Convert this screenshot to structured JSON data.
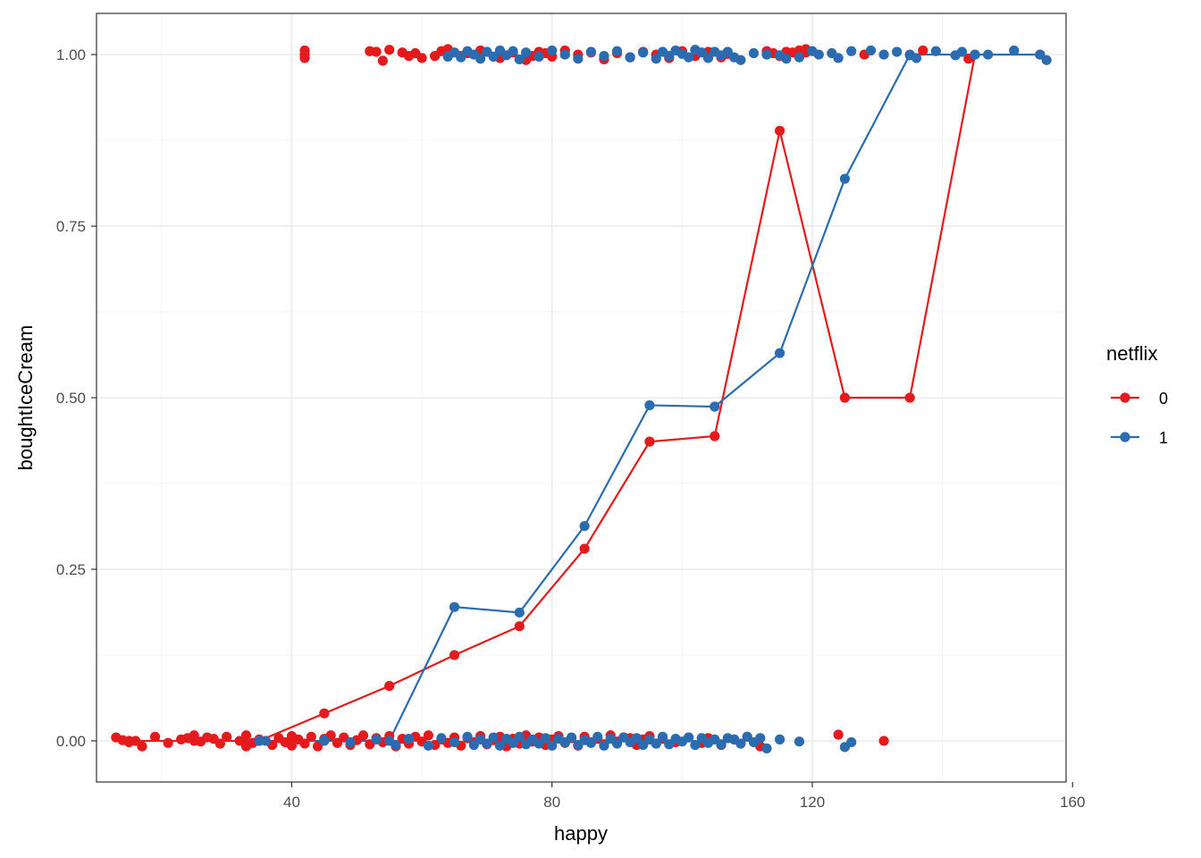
{
  "chart_data": {
    "type": "scatter",
    "title": "",
    "xlabel": "happy",
    "ylabel": "boughtIceCream",
    "xlim": [
      10,
      159
    ],
    "ylim": [
      -0.06,
      1.06
    ],
    "x_ticks": [
      40,
      80,
      120,
      160
    ],
    "x_tick_labels": [
      "40",
      "80",
      "120",
      "160"
    ],
    "y_ticks": [
      0,
      0.25,
      0.5,
      0.75,
      1
    ],
    "y_tick_labels": [
      "0.00",
      "0.25",
      "0.50",
      "0.75",
      "1.00"
    ],
    "grid": true,
    "theme": "bw",
    "legend": {
      "title": "netflix",
      "position": "right"
    },
    "colors": {
      "0": "#e41a1c",
      "1": "#2b6cb0",
      "grid_major": "#ebebeb",
      "grid_minor": "#f5f5f5",
      "panel_border": "#333333"
    },
    "series": [
      {
        "name": "0",
        "color": "#e41a1c",
        "line": {
          "x": [
            15,
            25,
            35,
            45,
            55,
            65,
            75,
            85,
            95,
            105,
            115,
            125,
            135,
            145,
            155
          ],
          "y": [
            0,
            0,
            0,
            0.04,
            0.08,
            0.125,
            0.167,
            0.28,
            0.436,
            0.444,
            0.889,
            0.5,
            0.5,
            1.0,
            1.0
          ]
        },
        "points": [
          [
            13,
            0.005
          ],
          [
            14,
            0.001
          ],
          [
            15,
            -0.002
          ],
          [
            16,
            0.0
          ],
          [
            17,
            -0.008
          ],
          [
            19,
            0.006
          ],
          [
            21,
            -0.003
          ],
          [
            23,
            0.002
          ],
          [
            24,
            0.004
          ],
          [
            25,
            0.008
          ],
          [
            26,
            -0.001
          ],
          [
            27,
            0.005
          ],
          [
            28,
            0.003
          ],
          [
            29,
            -0.004
          ],
          [
            30,
            0.006
          ],
          [
            32,
            0.0
          ],
          [
            33,
            0.008
          ],
          [
            33,
            -0.008
          ],
          [
            34,
            -0.003
          ],
          [
            35,
            0.002
          ],
          [
            37,
            -0.006
          ],
          [
            38,
            0.004
          ],
          [
            39,
            -0.002
          ],
          [
            40,
            0.007
          ],
          [
            40,
            -0.007
          ],
          [
            41,
            0.002
          ],
          [
            42,
            -0.004
          ],
          [
            43,
            0.006
          ],
          [
            44,
            -0.008
          ],
          [
            45,
            0.003
          ],
          [
            46,
            0.008
          ],
          [
            47,
            -0.003
          ],
          [
            48,
            0.005
          ],
          [
            49,
            -0.006
          ],
          [
            50,
            0.001
          ],
          [
            51,
            0.008
          ],
          [
            52,
            -0.005
          ],
          [
            53,
            0.004
          ],
          [
            54,
            -0.002
          ],
          [
            55,
            0.007
          ],
          [
            56,
            -0.008
          ],
          [
            57,
            0.003
          ],
          [
            58,
            -0.004
          ],
          [
            59,
            0.006
          ],
          [
            60,
            -0.001
          ],
          [
            61,
            0.008
          ],
          [
            62,
            -0.006
          ],
          [
            63,
            0.002
          ],
          [
            64,
            -0.003
          ],
          [
            65,
            0.005
          ],
          [
            66,
            -0.007
          ],
          [
            67,
            0.004
          ],
          [
            68,
            -0.002
          ],
          [
            69,
            0.007
          ],
          [
            70,
            -0.005
          ],
          [
            71,
            0.001
          ],
          [
            72,
            0.006
          ],
          [
            73,
            -0.008
          ],
          [
            74,
            0.003
          ],
          [
            75,
            -0.004
          ],
          [
            76,
            0.008
          ],
          [
            77,
            -0.001
          ],
          [
            78,
            0.005
          ],
          [
            79,
            -0.006
          ],
          [
            80,
            0.002
          ],
          [
            81,
            0.007
          ],
          [
            82,
            -0.003
          ],
          [
            83,
            0.004
          ],
          [
            84,
            -0.007
          ],
          [
            85,
            0.006
          ],
          [
            86,
            -0.002
          ],
          [
            87,
            0.003
          ],
          [
            88,
            -0.005
          ],
          [
            89,
            0.008
          ],
          [
            90,
            -0.001
          ],
          [
            91,
            0.005
          ],
          [
            92,
            0.004
          ],
          [
            93,
            -0.006
          ],
          [
            94,
            0.002
          ],
          [
            95,
            0.007
          ],
          [
            96,
            -0.004
          ],
          [
            97,
            0.003
          ],
          [
            99,
            -0.002
          ],
          [
            101,
            0.005
          ],
          [
            103,
            -0.003
          ],
          [
            104,
            0.004
          ],
          [
            106,
            -0.006
          ],
          [
            108,
            0.002
          ],
          [
            110,
            0.006
          ],
          [
            112,
            -0.008
          ],
          [
            124,
            0.009
          ],
          [
            131,
            0.0
          ],
          [
            42,
            1.006
          ],
          [
            42,
            1.0
          ],
          [
            42,
            0.995
          ],
          [
            52,
            1.005
          ],
          [
            53,
            1.004
          ],
          [
            54,
            0.991
          ],
          [
            55,
            1.007
          ],
          [
            57,
            1.003
          ],
          [
            58,
            0.998
          ],
          [
            59,
            1.002
          ],
          [
            60,
            0.995
          ],
          [
            62,
            0.998
          ],
          [
            63,
            1.005
          ],
          [
            64,
            1.008
          ],
          [
            66,
            0.998
          ],
          [
            67,
            1.002
          ],
          [
            69,
            1.006
          ],
          [
            72,
            0.995
          ],
          [
            74,
            1.003
          ],
          [
            76,
            0.992
          ],
          [
            77,
            0.998
          ],
          [
            78,
            1.004
          ],
          [
            79,
            1.002
          ],
          [
            80,
            0.997
          ],
          [
            82,
            1.006
          ],
          [
            84,
            1.0
          ],
          [
            86,
            1.003
          ],
          [
            88,
            0.993
          ],
          [
            90,
            1.002
          ],
          [
            92,
            0.996
          ],
          [
            94,
            1.004
          ],
          [
            96,
            1.0
          ],
          [
            98,
            0.995
          ],
          [
            100,
            1.005
          ],
          [
            102,
            0.998
          ],
          [
            104,
            1.004
          ],
          [
            106,
            0.996
          ],
          [
            107,
            1.001
          ],
          [
            113,
            1.005
          ],
          [
            114,
            1.002
          ],
          [
            115,
            0.998
          ],
          [
            116,
            1.004
          ],
          [
            117,
            1.003
          ],
          [
            118,
            1.006
          ],
          [
            119,
            1.008
          ],
          [
            119,
            1.003
          ],
          [
            128,
            1.0
          ],
          [
            137,
            1.006
          ],
          [
            144,
            0.994
          ]
        ]
      },
      {
        "name": "1",
        "color": "#2b6cb0",
        "line": {
          "x": [
            35,
            45,
            55,
            65,
            75,
            85,
            95,
            105,
            115,
            125,
            135,
            145,
            155
          ],
          "y": [
            0,
            0,
            0,
            0.195,
            0.187,
            0.313,
            0.489,
            0.487,
            0.565,
            0.819,
            1.0,
            1.0,
            1.0
          ]
        },
        "points": [
          [
            36,
            0.0
          ],
          [
            45,
            0.001
          ],
          [
            49,
            -0.002
          ],
          [
            53,
            0.002
          ],
          [
            56,
            -0.006
          ],
          [
            58,
            0.003
          ],
          [
            61,
            -0.007
          ],
          [
            63,
            0.004
          ],
          [
            65,
            -0.002
          ],
          [
            67,
            0.006
          ],
          [
            68,
            -0.006
          ],
          [
            69,
            0.002
          ],
          [
            70,
            -0.004
          ],
          [
            71,
            0.005
          ],
          [
            72,
            -0.007
          ],
          [
            73,
            0.003
          ],
          [
            74,
            -0.003
          ],
          [
            75,
            0.006
          ],
          [
            76,
            -0.005
          ],
          [
            77,
            0.002
          ],
          [
            78,
            -0.004
          ],
          [
            79,
            0.004
          ],
          [
            80,
            -0.007
          ],
          [
            81,
            0.003
          ],
          [
            82,
            -0.002
          ],
          [
            83,
            0.005
          ],
          [
            84,
            -0.006
          ],
          [
            85,
            0.001
          ],
          [
            86,
            -0.003
          ],
          [
            87,
            0.006
          ],
          [
            88,
            -0.007
          ],
          [
            89,
            0.003
          ],
          [
            90,
            -0.004
          ],
          [
            91,
            0.005
          ],
          [
            92,
            -0.002
          ],
          [
            93,
            0.004
          ],
          [
            94,
            -0.006
          ],
          [
            95,
            0.002
          ],
          [
            96,
            -0.004
          ],
          [
            97,
            0.006
          ],
          [
            98,
            -0.005
          ],
          [
            99,
            0.003
          ],
          [
            100,
            -0.001
          ],
          [
            101,
            0.005
          ],
          [
            102,
            -0.006
          ],
          [
            103,
            0.004
          ],
          [
            104,
            -0.003
          ],
          [
            105,
            0.002
          ],
          [
            106,
            -0.005
          ],
          [
            107,
            0.004
          ],
          [
            108,
            0.002
          ],
          [
            109,
            -0.004
          ],
          [
            110,
            0.006
          ],
          [
            111,
            -0.002
          ],
          [
            112,
            0.004
          ],
          [
            113,
            -0.011
          ],
          [
            115,
            0.002
          ],
          [
            118,
            -0.001
          ],
          [
            125,
            -0.009
          ],
          [
            126,
            -0.002
          ],
          [
            64,
            0.997
          ],
          [
            65,
            1.003
          ],
          [
            66,
            0.996
          ],
          [
            67,
            1.005
          ],
          [
            68,
            1.0
          ],
          [
            69,
            0.994
          ],
          [
            70,
            1.004
          ],
          [
            71,
            0.997
          ],
          [
            72,
            1.006
          ],
          [
            73,
            0.999
          ],
          [
            74,
            1.005
          ],
          [
            75,
            0.993
          ],
          [
            76,
            1.003
          ],
          [
            78,
            0.997
          ],
          [
            80,
            1.006
          ],
          [
            82,
            1.0
          ],
          [
            84,
            0.994
          ],
          [
            86,
            1.004
          ],
          [
            88,
            0.998
          ],
          [
            90,
            1.005
          ],
          [
            92,
            0.996
          ],
          [
            94,
            1.003
          ],
          [
            96,
            0.994
          ],
          [
            97,
            1.004
          ],
          [
            98,
            0.998
          ],
          [
            99,
            1.006
          ],
          [
            100,
            1.001
          ],
          [
            101,
            0.996
          ],
          [
            102,
            1.007
          ],
          [
            103,
            1.003
          ],
          [
            104,
            0.995
          ],
          [
            105,
            1.004
          ],
          [
            106,
            0.999
          ],
          [
            107,
            1.004
          ],
          [
            108,
            0.996
          ],
          [
            109,
            0.992
          ],
          [
            111,
            1.002
          ],
          [
            113,
            1.0
          ],
          [
            115,
            0.999
          ],
          [
            116,
            0.994
          ],
          [
            118,
            0.996
          ],
          [
            120,
            1.005
          ],
          [
            121,
            1.0
          ],
          [
            123,
            1.002
          ],
          [
            124,
            0.995
          ],
          [
            126,
            1.005
          ],
          [
            129,
            1.006
          ],
          [
            131,
            1.0
          ],
          [
            133,
            1.004
          ],
          [
            135,
            0.999
          ],
          [
            136,
            0.995
          ],
          [
            139,
            1.005
          ],
          [
            142,
            0.999
          ],
          [
            143,
            1.004
          ],
          [
            147,
            1.0
          ],
          [
            151,
            1.006
          ],
          [
            156,
            0.992
          ]
        ]
      }
    ]
  }
}
